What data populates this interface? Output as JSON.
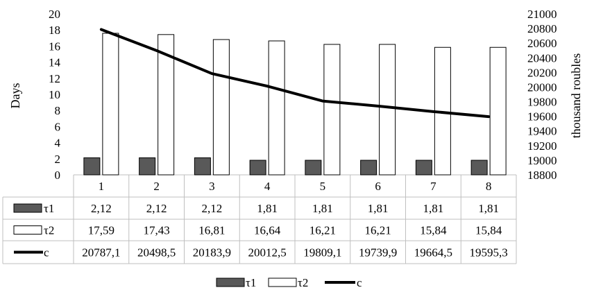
{
  "chart_data": {
    "type": "bar",
    "categories": [
      "1",
      "2",
      "3",
      "4",
      "5",
      "6",
      "7",
      "8"
    ],
    "series": [
      {
        "name": "τ1",
        "kind": "bar",
        "axis": "left",
        "color": "#595959",
        "values": [
          2.12,
          2.12,
          2.12,
          1.81,
          1.81,
          1.81,
          1.81,
          1.81
        ],
        "labels": [
          "2,12",
          "2,12",
          "2,12",
          "1,81",
          "1,81",
          "1,81",
          "1,81",
          "1,81"
        ]
      },
      {
        "name": "τ2",
        "kind": "bar",
        "axis": "left",
        "color": "#ffffff",
        "values": [
          17.59,
          17.43,
          16.81,
          16.64,
          16.21,
          16.21,
          15.84,
          15.84
        ],
        "labels": [
          "17,59",
          "17,43",
          "16,81",
          "16,64",
          "16,21",
          "16,21",
          "15,84",
          "15,84"
        ]
      },
      {
        "name": "c",
        "kind": "line",
        "axis": "right",
        "color": "#000000",
        "values": [
          20787.1,
          20498.5,
          20183.9,
          20012.5,
          19809.1,
          19739.9,
          19664.5,
          19595.3
        ],
        "labels": [
          "20787,1",
          "20498,5",
          "20183,9",
          "20012,5",
          "19809,1",
          "19739,9",
          "19664,5",
          "19595,3"
        ]
      }
    ],
    "ylabel": "Days",
    "y2label": "thousand roubles",
    "ylim": [
      0,
      20
    ],
    "y2lim": [
      18800,
      21000
    ],
    "yticks": [
      "0",
      "2",
      "4",
      "6",
      "8",
      "10",
      "12",
      "14",
      "16",
      "18",
      "20"
    ],
    "y2ticks": [
      "18800",
      "19000",
      "19200",
      "19400",
      "19600",
      "19800",
      "20000",
      "20200",
      "20400",
      "20600",
      "20800",
      "21000"
    ],
    "grid": false,
    "data_table": true,
    "legend": "bottom"
  }
}
